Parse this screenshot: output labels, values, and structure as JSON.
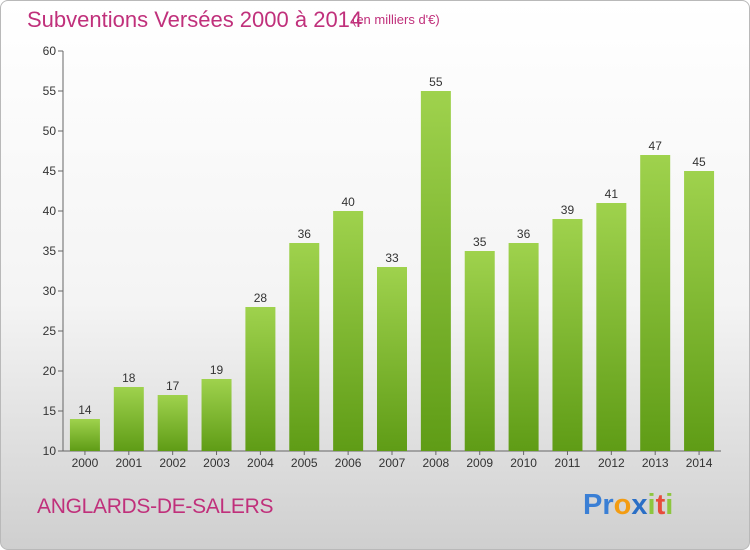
{
  "header": {
    "title": "Subventions Versées 2000 à 2014",
    "subtitle": "(en milliers d'€)"
  },
  "footer": {
    "commune": "ANGLARDS-DE-SALERS",
    "logo_text": "Proxiti",
    "logo_letters": [
      {
        "char": "P",
        "color": "#3a7fd5"
      },
      {
        "char": "r",
        "color": "#3a7fd5"
      },
      {
        "char": "o",
        "color": "#f39c12"
      },
      {
        "char": "x",
        "color": "#2b6fc6"
      },
      {
        "char": "i",
        "color": "#8dc63f"
      },
      {
        "char": "t",
        "color": "#e74c3c"
      },
      {
        "char": "i",
        "color": "#8dc63f"
      }
    ]
  },
  "chart_data": {
    "type": "bar",
    "categories": [
      "2000",
      "2001",
      "2002",
      "2003",
      "2004",
      "2005",
      "2006",
      "2007",
      "2008",
      "2009",
      "2010",
      "2011",
      "2012",
      "2013",
      "2014"
    ],
    "values": [
      14,
      18,
      17,
      19,
      28,
      36,
      40,
      33,
      55,
      35,
      36,
      39,
      41,
      47,
      45
    ],
    "ylim": [
      10,
      60
    ],
    "yticks": [
      10,
      15,
      20,
      25,
      30,
      35,
      40,
      45,
      50,
      55,
      60
    ],
    "grid": false,
    "legend": "none",
    "bar_color_top": "#9fd24d",
    "bar_color_bottom": "#5f9c16"
  }
}
